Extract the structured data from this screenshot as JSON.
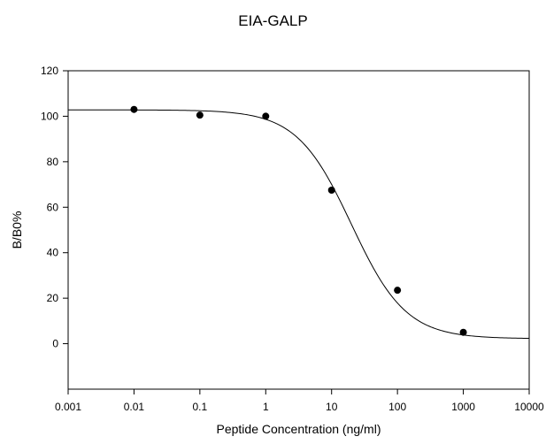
{
  "chart_data": {
    "type": "scatter",
    "title": "EIA-GALP",
    "xlabel": "Peptide Concentration (ng/ml)",
    "ylabel": "B/B0%",
    "x_scale": "log",
    "xlim": [
      0.001,
      10000
    ],
    "ylim": [
      -20,
      120
    ],
    "x_ticks": [
      0.001,
      0.01,
      0.1,
      1,
      10,
      100,
      1000,
      10000
    ],
    "x_tick_labels": [
      "0.001",
      "0.01",
      "0.1",
      "1",
      "10",
      "100",
      "1000",
      "10000"
    ],
    "y_ticks": [
      0,
      20,
      40,
      60,
      80,
      100,
      120
    ],
    "y_tick_labels": [
      "0",
      "20",
      "40",
      "60",
      "80",
      "100",
      "120"
    ],
    "grid": false,
    "series": [
      {
        "points": [
          {
            "x": 0.01,
            "y": 103
          },
          {
            "x": 0.1,
            "y": 100.5
          },
          {
            "x": 1,
            "y": 100
          },
          {
            "x": 10,
            "y": 67.5
          },
          {
            "x": 100,
            "y": 23.5
          },
          {
            "x": 1000,
            "y": 5
          }
        ]
      }
    ],
    "fit_curve": {
      "model": "four-parameter logistic",
      "top": 102.8,
      "bottom": 2.2,
      "ec50": 20,
      "hill_slope": 1.05
    }
  }
}
